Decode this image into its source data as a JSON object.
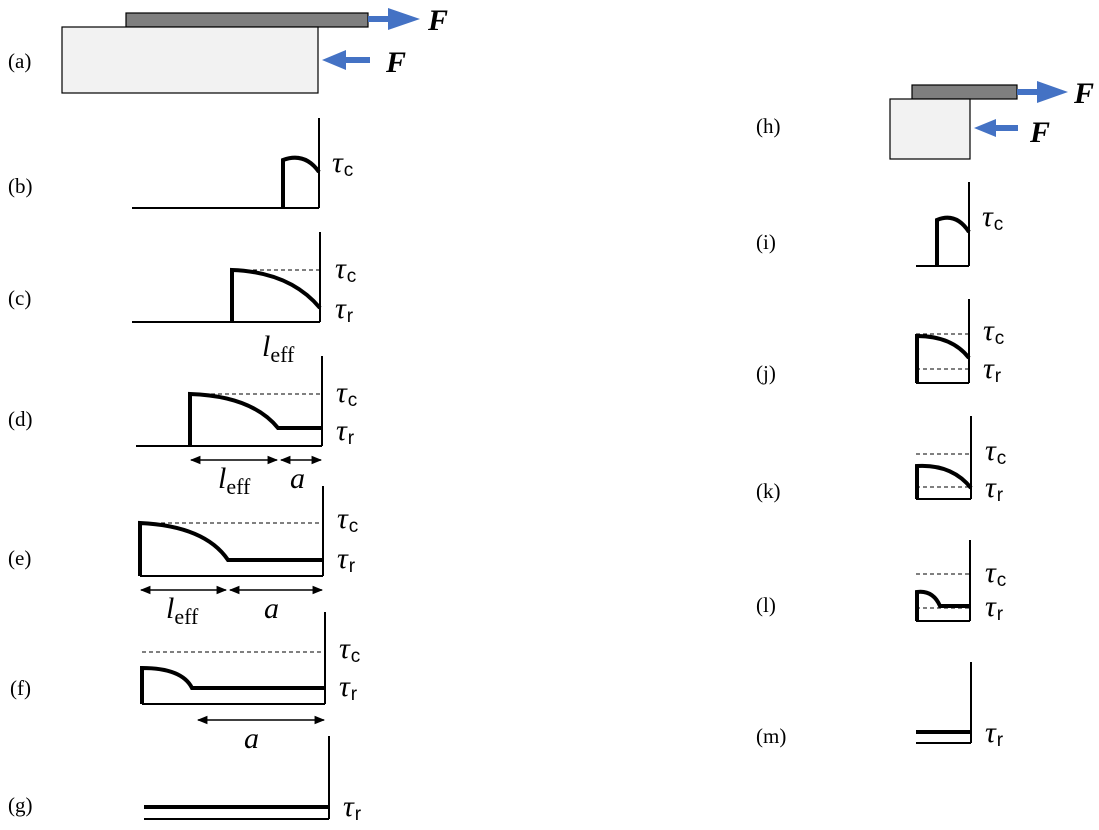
{
  "labels": {
    "a": "(a)",
    "b": "(b)",
    "c": "(c)",
    "d": "(d)",
    "e": "(e)",
    "f": "(f)",
    "g": "(g)",
    "h": "(h)",
    "i": "(i)",
    "j": "(j)",
    "k": "(k)",
    "l": "(l)",
    "m": "(m)"
  },
  "symbols": {
    "force": "F",
    "tau": "τ",
    "critical_sub": "c",
    "residual_sub": "r",
    "length": "l",
    "length_sub": "eff",
    "crack": "a"
  },
  "colors": {
    "arrow": "#4472C4",
    "fiber": "#7f7f7f",
    "matrix": "#f2f2f2",
    "line": "#000000"
  }
}
